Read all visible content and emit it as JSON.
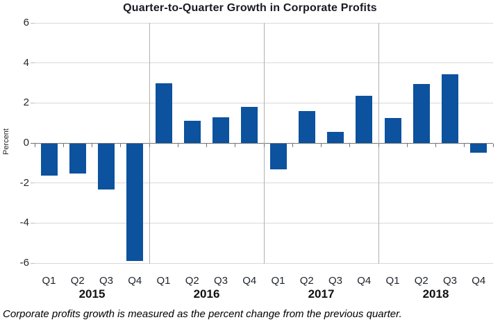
{
  "title": "Quarter-to-Quarter Growth in Corporate Profits",
  "caption": "Corporate profits growth is measured as the percent change from the previous quarter.",
  "chart_data": {
    "type": "bar",
    "title": "Quarter-to-Quarter Growth in Corporate Profits",
    "xlabel": "",
    "ylabel": "Percent",
    "ylim": [
      -6,
      6
    ],
    "yticks": [
      6,
      4,
      2,
      0,
      -2,
      -4,
      -6
    ],
    "grid": true,
    "legend": false,
    "bar_color": "#0c529e",
    "categories": [
      "Q1",
      "Q2",
      "Q3",
      "Q4",
      "Q1",
      "Q2",
      "Q3",
      "Q4",
      "Q1",
      "Q2",
      "Q3",
      "Q4",
      "Q1",
      "Q2",
      "Q3",
      "Q4"
    ],
    "groups": [
      {
        "year": "2015",
        "quarters": [
          "Q1",
          "Q2",
          "Q3",
          "Q4"
        ],
        "values": [
          -1.6,
          -1.5,
          -2.3,
          -5.85
        ]
      },
      {
        "year": "2016",
        "quarters": [
          "Q1",
          "Q2",
          "Q3",
          "Q4"
        ],
        "values": [
          3.0,
          1.1,
          1.3,
          1.8
        ]
      },
      {
        "year": "2017",
        "quarters": [
          "Q1",
          "Q2",
          "Q3",
          "Q4"
        ],
        "values": [
          -1.3,
          1.6,
          0.55,
          2.35
        ]
      },
      {
        "year": "2018",
        "quarters": [
          "Q1",
          "Q2",
          "Q3",
          "Q4"
        ],
        "values": [
          1.25,
          2.95,
          3.45,
          -0.45
        ]
      }
    ]
  }
}
